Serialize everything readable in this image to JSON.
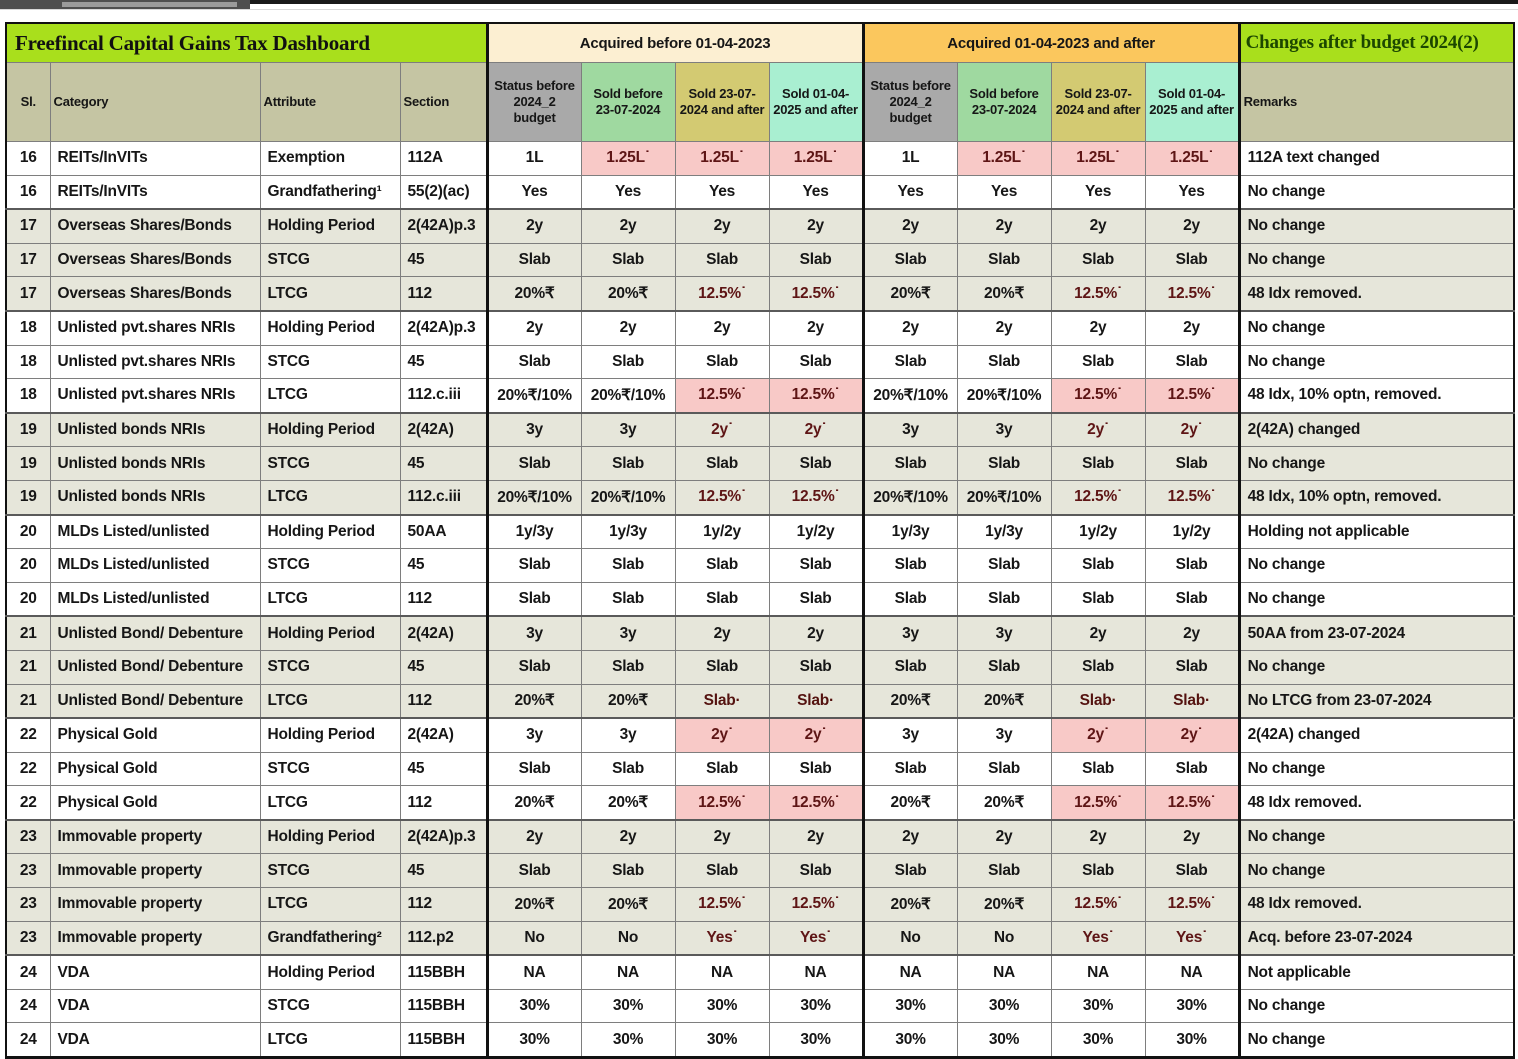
{
  "title_left": "Freefincal Capital Gains Tax Dashboard",
  "title_right": "Changes after budget 2024(2)",
  "group_headers": [
    "Acquired before 01-04-2023",
    "Acquired 01-04-2023 and after"
  ],
  "columns": {
    "sl": "Sl.",
    "category": "Category",
    "attribute": "Attribute",
    "section": "Section",
    "value_cols": [
      "Status before 2024_2 budget",
      "Sold before 23-07-2024",
      "Sold 23-07-2024 and after",
      "Sold 01-04-2025 and after"
    ],
    "remarks": "Remarks"
  },
  "colors": {
    "title_green": "#a9df1c",
    "group1_cream": "#fcefd2",
    "group2_orange": "#fbc75d",
    "header_olive": "#c5c5a3",
    "subcol_gray": "#a9a9a9",
    "subcol_green": "#9fd9a0",
    "subcol_khaki": "#d3ca72",
    "subcol_mint": "#a9efd1",
    "stripe_olive": "#e6e6da",
    "highlight_pink": "#f8c9c7",
    "highlight_red": "#f4837d",
    "changes_title_text": "#1c4700"
  },
  "rows": [
    {
      "sl": "16",
      "category": "REITs/InVITs",
      "attribute": "Exemption",
      "section": "112A",
      "values": [
        "1L",
        "1.25L˙",
        "1.25L˙",
        "1.25L˙",
        "1L",
        "1.25L˙",
        "1.25L˙",
        "1.25L˙"
      ],
      "hl": [
        0,
        1,
        1,
        1,
        0,
        1,
        1,
        1
      ],
      "remarks": "112A text changed"
    },
    {
      "sl": "16",
      "category": "REITs/InVITs",
      "attribute": "Grandfathering¹",
      "section": "55(2)(ac)",
      "values": [
        "Yes",
        "Yes",
        "Yes",
        "Yes",
        "Yes",
        "Yes",
        "Yes",
        "Yes"
      ],
      "hl": [
        0,
        0,
        0,
        0,
        0,
        0,
        0,
        0
      ],
      "remarks": "No change"
    },
    {
      "sl": "17",
      "category": "Overseas Shares/Bonds",
      "attribute": "Holding Period",
      "section": "2(42A)p.3",
      "values": [
        "2y",
        "2y",
        "2y",
        "2y",
        "2y",
        "2y",
        "2y",
        "2y"
      ],
      "hl": [
        0,
        0,
        0,
        0,
        0,
        0,
        0,
        0
      ],
      "remarks": "No change"
    },
    {
      "sl": "17",
      "category": "Overseas Shares/Bonds",
      "attribute": "STCG",
      "section": "45",
      "values": [
        "Slab",
        "Slab",
        "Slab",
        "Slab",
        "Slab",
        "Slab",
        "Slab",
        "Slab"
      ],
      "hl": [
        0,
        0,
        0,
        0,
        0,
        0,
        0,
        0
      ],
      "remarks": "No change"
    },
    {
      "sl": "17",
      "category": "Overseas Shares/Bonds",
      "attribute": "LTCG",
      "section": "112",
      "values": [
        "20%₹",
        "20%₹",
        "12.5%˙",
        "12.5%˙",
        "20%₹",
        "20%₹",
        "12.5%˙",
        "12.5%˙"
      ],
      "hl": [
        0,
        0,
        1,
        1,
        0,
        0,
        1,
        1
      ],
      "remarks": "48 Idx removed."
    },
    {
      "sl": "18",
      "category": "Unlisted pvt.shares NRIs",
      "attribute": "Holding Period",
      "section": "2(42A)p.3",
      "values": [
        "2y",
        "2y",
        "2y",
        "2y",
        "2y",
        "2y",
        "2y",
        "2y"
      ],
      "hl": [
        0,
        0,
        0,
        0,
        0,
        0,
        0,
        0
      ],
      "remarks": "No change"
    },
    {
      "sl": "18",
      "category": "Unlisted pvt.shares NRIs",
      "attribute": "STCG",
      "section": "45",
      "values": [
        "Slab",
        "Slab",
        "Slab",
        "Slab",
        "Slab",
        "Slab",
        "Slab",
        "Slab"
      ],
      "hl": [
        0,
        0,
        0,
        0,
        0,
        0,
        0,
        0
      ],
      "remarks": "No change"
    },
    {
      "sl": "18",
      "category": "Unlisted pvt.shares NRIs",
      "attribute": "LTCG",
      "section": "112.c.iii",
      "values": [
        "20%₹/10%",
        "20%₹/10%",
        "12.5%˙",
        "12.5%˙",
        "20%₹/10%",
        "20%₹/10%",
        "12.5%˙",
        "12.5%˙"
      ],
      "hl": [
        0,
        0,
        1,
        1,
        0,
        0,
        1,
        1
      ],
      "remarks": "48 Idx, 10% optn, removed."
    },
    {
      "sl": "19",
      "category": "Unlisted bonds NRIs",
      "attribute": "Holding Period",
      "section": "2(42A)",
      "values": [
        "3y",
        "3y",
        "2y˙",
        "2y˙",
        "3y",
        "3y",
        "2y˙",
        "2y˙"
      ],
      "hl": [
        0,
        0,
        1,
        1,
        0,
        0,
        1,
        1
      ],
      "remarks": "2(42A) changed"
    },
    {
      "sl": "19",
      "category": "Unlisted bonds NRIs",
      "attribute": "STCG",
      "section": "45",
      "values": [
        "Slab",
        "Slab",
        "Slab",
        "Slab",
        "Slab",
        "Slab",
        "Slab",
        "Slab"
      ],
      "hl": [
        0,
        0,
        0,
        0,
        0,
        0,
        0,
        0
      ],
      "remarks": "No change"
    },
    {
      "sl": "19",
      "category": "Unlisted bonds NRIs",
      "attribute": "LTCG",
      "section": "112.c.iii",
      "values": [
        "20%₹/10%",
        "20%₹/10%",
        "12.5%˙",
        "12.5%˙",
        "20%₹/10%",
        "20%₹/10%",
        "12.5%˙",
        "12.5%˙"
      ],
      "hl": [
        0,
        0,
        1,
        1,
        0,
        0,
        1,
        1
      ],
      "remarks": "48 Idx, 10% optn, removed."
    },
    {
      "sl": "20",
      "category": "MLDs Listed/unlisted",
      "attribute": "Holding Period",
      "section": "50AA",
      "values": [
        "1y/3y",
        "1y/3y",
        "1y/2y",
        "1y/2y",
        "1y/3y",
        "1y/3y",
        "1y/2y",
        "1y/2y"
      ],
      "hl": [
        0,
        0,
        0,
        0,
        0,
        0,
        0,
        0
      ],
      "remarks": "Holding not applicable"
    },
    {
      "sl": "20",
      "category": "MLDs Listed/unlisted",
      "attribute": "STCG",
      "section": "45",
      "values": [
        "Slab",
        "Slab",
        "Slab",
        "Slab",
        "Slab",
        "Slab",
        "Slab",
        "Slab"
      ],
      "hl": [
        0,
        0,
        0,
        0,
        0,
        0,
        0,
        0
      ],
      "remarks": "No change"
    },
    {
      "sl": "20",
      "category": "MLDs Listed/unlisted",
      "attribute": "LTCG",
      "section": "112",
      "values": [
        "Slab",
        "Slab",
        "Slab",
        "Slab",
        "Slab",
        "Slab",
        "Slab",
        "Slab"
      ],
      "hl": [
        0,
        0,
        0,
        0,
        0,
        0,
        0,
        0
      ],
      "remarks": "No change"
    },
    {
      "sl": "21",
      "category": "Unlisted Bond/ Debenture",
      "attribute": "Holding Period",
      "section": "2(42A)",
      "values": [
        "3y",
        "3y",
        "2y",
        "2y",
        "3y",
        "3y",
        "2y",
        "2y"
      ],
      "hl": [
        0,
        0,
        0,
        0,
        0,
        0,
        0,
        0
      ],
      "remarks": "50AA from 23-07-2024"
    },
    {
      "sl": "21",
      "category": "Unlisted Bond/ Debenture",
      "attribute": "STCG",
      "section": "45",
      "values": [
        "Slab",
        "Slab",
        "Slab",
        "Slab",
        "Slab",
        "Slab",
        "Slab",
        "Slab"
      ],
      "hl": [
        0,
        0,
        0,
        0,
        0,
        0,
        0,
        0
      ],
      "remarks": "No change"
    },
    {
      "sl": "21",
      "category": "Unlisted Bond/ Debenture",
      "attribute": "LTCG",
      "section": "112",
      "values": [
        "20%₹",
        "20%₹",
        "Slab·",
        "Slab·",
        "20%₹",
        "20%₹",
        "Slab·",
        "Slab·"
      ],
      "hl": [
        0,
        0,
        2,
        2,
        0,
        0,
        2,
        2
      ],
      "remarks": "No LTCG from 23-07-2024"
    },
    {
      "sl": "22",
      "category": "Physical Gold",
      "attribute": "Holding Period",
      "section": "2(42A)",
      "values": [
        "3y",
        "3y",
        "2y˙",
        "2y˙",
        "3y",
        "3y",
        "2y˙",
        "2y˙"
      ],
      "hl": [
        0,
        0,
        1,
        1,
        0,
        0,
        1,
        1
      ],
      "remarks": "2(42A) changed"
    },
    {
      "sl": "22",
      "category": "Physical Gold",
      "attribute": "STCG",
      "section": "45",
      "values": [
        "Slab",
        "Slab",
        "Slab",
        "Slab",
        "Slab",
        "Slab",
        "Slab",
        "Slab"
      ],
      "hl": [
        0,
        0,
        0,
        0,
        0,
        0,
        0,
        0
      ],
      "remarks": "No change"
    },
    {
      "sl": "22",
      "category": "Physical Gold",
      "attribute": "LTCG",
      "section": "112",
      "values": [
        "20%₹",
        "20%₹",
        "12.5%˙",
        "12.5%˙",
        "20%₹",
        "20%₹",
        "12.5%˙",
        "12.5%˙"
      ],
      "hl": [
        0,
        0,
        1,
        1,
        0,
        0,
        1,
        1
      ],
      "remarks": "48 Idx removed."
    },
    {
      "sl": "23",
      "category": "Immovable property",
      "attribute": "Holding Period",
      "section": "2(42A)p.3",
      "values": [
        "2y",
        "2y",
        "2y",
        "2y",
        "2y",
        "2y",
        "2y",
        "2y"
      ],
      "hl": [
        0,
        0,
        0,
        0,
        0,
        0,
        0,
        0
      ],
      "remarks": "No change"
    },
    {
      "sl": "23",
      "category": "Immovable property",
      "attribute": "STCG",
      "section": "45",
      "values": [
        "Slab",
        "Slab",
        "Slab",
        "Slab",
        "Slab",
        "Slab",
        "Slab",
        "Slab"
      ],
      "hl": [
        0,
        0,
        0,
        0,
        0,
        0,
        0,
        0
      ],
      "remarks": "No change"
    },
    {
      "sl": "23",
      "category": "Immovable property",
      "attribute": "LTCG",
      "section": "112",
      "values": [
        "20%₹",
        "20%₹",
        "12.5%˙",
        "12.5%˙",
        "20%₹",
        "20%₹",
        "12.5%˙",
        "12.5%˙"
      ],
      "hl": [
        0,
        0,
        1,
        1,
        0,
        0,
        1,
        1
      ],
      "remarks": "48 Idx removed."
    },
    {
      "sl": "23",
      "category": "Immovable property",
      "attribute": "Grandfathering²",
      "section": "112.p2",
      "values": [
        "No",
        "No",
        "Yes˙",
        "Yes˙",
        "No",
        "No",
        "Yes˙",
        "Yes˙"
      ],
      "hl": [
        0,
        0,
        1,
        1,
        0,
        0,
        1,
        1
      ],
      "remarks": "Acq. before 23-07-2024"
    },
    {
      "sl": "24",
      "category": "VDA",
      "attribute": "Holding Period",
      "section": "115BBH",
      "values": [
        "NA",
        "NA",
        "NA",
        "NA",
        "NA",
        "NA",
        "NA",
        "NA"
      ],
      "hl": [
        0,
        0,
        0,
        0,
        0,
        0,
        0,
        0
      ],
      "remarks": "Not applicable"
    },
    {
      "sl": "24",
      "category": "VDA",
      "attribute": "STCG",
      "section": "115BBH",
      "values": [
        "30%",
        "30%",
        "30%",
        "30%",
        "30%",
        "30%",
        "30%",
        "30%"
      ],
      "hl": [
        0,
        0,
        0,
        0,
        0,
        0,
        0,
        0
      ],
      "remarks": "No change"
    },
    {
      "sl": "24",
      "category": "VDA",
      "attribute": "LTCG",
      "section": "115BBH",
      "values": [
        "30%",
        "30%",
        "30%",
        "30%",
        "30%",
        "30%",
        "30%",
        "30%"
      ],
      "hl": [
        0,
        0,
        0,
        0,
        0,
        0,
        0,
        0
      ],
      "remarks": "No change"
    }
  ]
}
